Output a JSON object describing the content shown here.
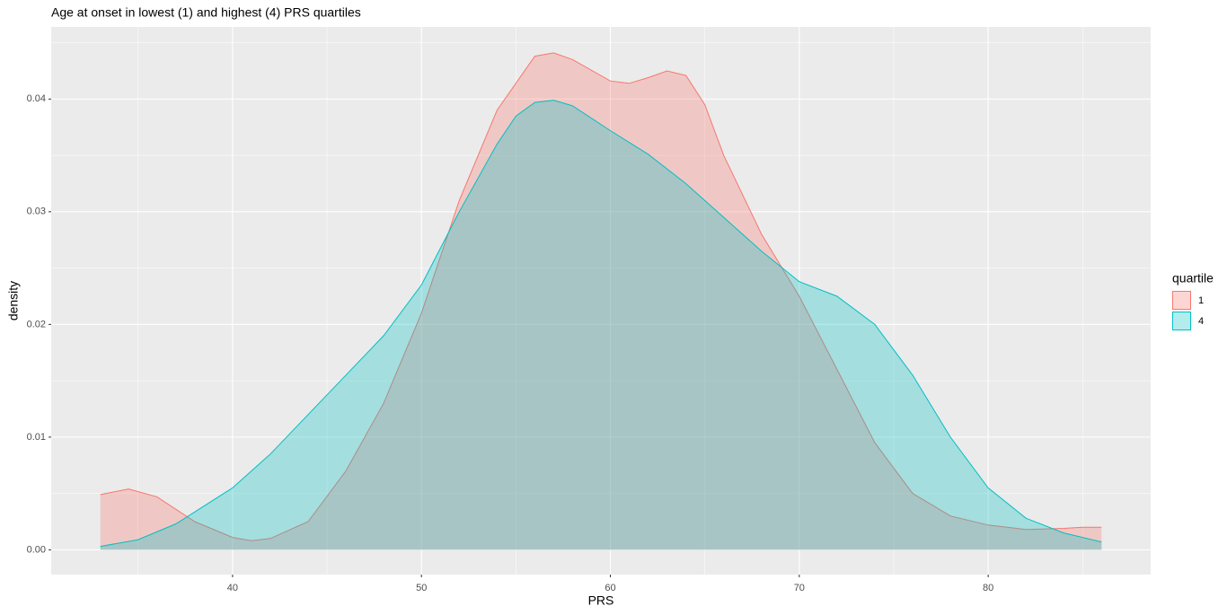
{
  "chart_data": {
    "type": "density",
    "title": "Age at onset in lowest (1) and highest (4) PRS quartiles",
    "x_label": "PRS",
    "y_label": "density",
    "legend_title": "quartile",
    "legend_position": "right",
    "grid": true,
    "xlim": [
      30.4,
      88.6
    ],
    "ylim": [
      -0.0022,
      0.0464
    ],
    "xticks": [
      40,
      50,
      60,
      70,
      80
    ],
    "yticks": [
      {
        "value": 0,
        "label": "0.00"
      },
      {
        "value": 0.01,
        "label": "0.01"
      },
      {
        "value": 0.02,
        "label": "0.02"
      },
      {
        "value": 0.03,
        "label": "0.03"
      },
      {
        "value": 0.04,
        "label": "0.04"
      }
    ],
    "xminor": [
      35,
      45,
      55,
      65,
      75,
      85
    ],
    "yminor": [
      0.005,
      0.015,
      0.025,
      0.035,
      0.045
    ],
    "series": [
      {
        "name": "1",
        "color": "#F8766D",
        "x": [
          33,
          34.5,
          36,
          38,
          40,
          41,
          42,
          44,
          46,
          48,
          50,
          52,
          54,
          56,
          57,
          58,
          60,
          61,
          62,
          63,
          64,
          65,
          66,
          68,
          70,
          72,
          74,
          76,
          78,
          80,
          82,
          84,
          85,
          86
        ],
        "values": [
          0.0049,
          0.0054,
          0.0047,
          0.0025,
          0.0011,
          0.0008,
          0.001,
          0.0025,
          0.007,
          0.013,
          0.021,
          0.031,
          0.039,
          0.0438,
          0.0441,
          0.0435,
          0.0416,
          0.0414,
          0.0419,
          0.0425,
          0.0421,
          0.0395,
          0.035,
          0.028,
          0.0225,
          0.016,
          0.0095,
          0.005,
          0.003,
          0.0022,
          0.0018,
          0.0019,
          0.002,
          0.002
        ]
      },
      {
        "name": "4",
        "color": "#00BFC4",
        "x": [
          33,
          35,
          37,
          40,
          42,
          44,
          46,
          48,
          50,
          52,
          54,
          55,
          56,
          57,
          58,
          60,
          62,
          64,
          66,
          68,
          70,
          72,
          74,
          76,
          78,
          80,
          82,
          84,
          86
        ],
        "values": [
          0.0003,
          0.0009,
          0.0023,
          0.0055,
          0.0085,
          0.012,
          0.0155,
          0.019,
          0.0235,
          0.03,
          0.036,
          0.0385,
          0.0397,
          0.0399,
          0.0394,
          0.0372,
          0.0351,
          0.0325,
          0.0295,
          0.0265,
          0.0238,
          0.0225,
          0.02,
          0.0155,
          0.01,
          0.0055,
          0.0028,
          0.0015,
          0.0007
        ]
      }
    ]
  }
}
